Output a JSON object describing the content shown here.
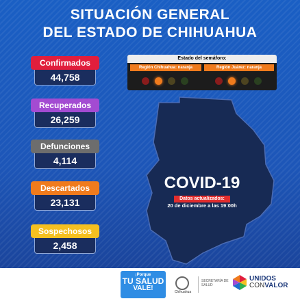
{
  "header": {
    "line1": "SITUACIÓN GENERAL",
    "line2": "DEL ESTADO DE CHIHUAHUA"
  },
  "stats": [
    {
      "label": "Confirmados",
      "value": "44,758",
      "color": "#e11e3c"
    },
    {
      "label": "Recuperados",
      "value": "26,259",
      "color": "#a34bd2"
    },
    {
      "label": "Defunciones",
      "value": "4,114",
      "color": "#6d6d6d"
    },
    {
      "label": "Descartados",
      "value": "23,131",
      "color": "#f07b1d"
    },
    {
      "label": "Sospechosos",
      "value": "2,458",
      "color": "#f5c020"
    }
  ],
  "semaforo": {
    "title": "Estado del semáforo:",
    "regions": [
      {
        "label": "Región Chihuahua: naranja",
        "active": "orange"
      },
      {
        "label": "Región Juárez: naranja",
        "active": "orange"
      }
    ],
    "light_colors": {
      "red": "#8a1c1c",
      "orange": "#f07b1d",
      "yellow": "#4d4420",
      "green": "#2a4020"
    }
  },
  "main": {
    "title": "COVID-19",
    "updated_label": "Datos actualizados:",
    "updated_date": "20 de diciembre a las 19:00h"
  },
  "footer": {
    "badge_line1": "¡Porque",
    "badge_line2": "TU SALUD",
    "badge_line3": "VALE!",
    "gov_name": "Chihuahua",
    "secretaria": "SECRETARÍA DE SALUD",
    "unidos": "UNIDOS",
    "con": "CON",
    "valor": "VALOR"
  }
}
